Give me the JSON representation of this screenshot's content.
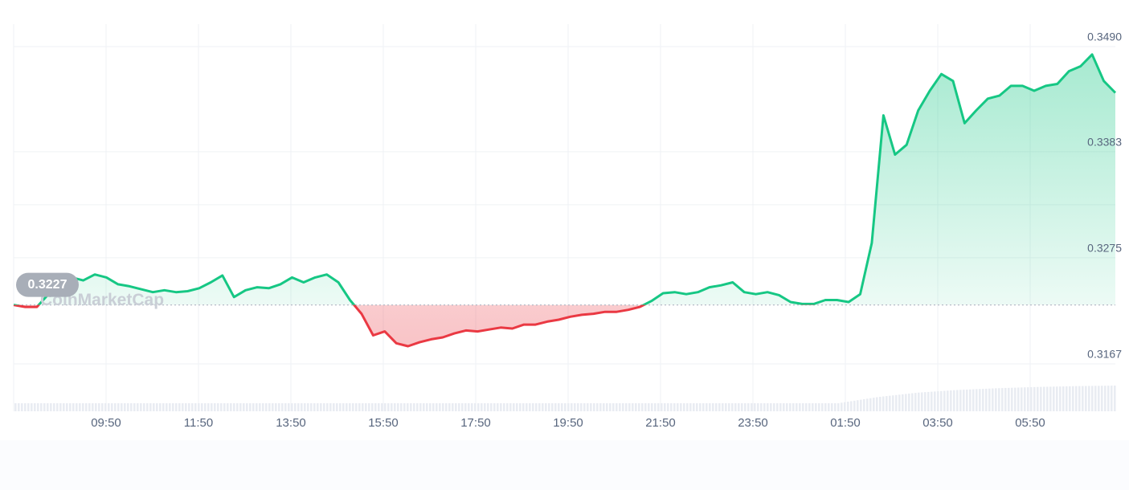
{
  "chart_data": {
    "type": "area",
    "title": "",
    "xlabel": "",
    "ylabel": "",
    "x_tick_labels": [
      "09:50",
      "11:50",
      "13:50",
      "15:50",
      "17:50",
      "19:50",
      "21:50",
      "23:50",
      "01:50",
      "03:50",
      "05:50"
    ],
    "y_tick_labels": [
      "0.3490",
      "0.3383",
      "0.3275",
      "0.3167"
    ],
    "ylim": [
      0.3138,
      0.351
    ],
    "baseline": 0.3227,
    "baseline_label": "0.3227",
    "watermark": "CoinMarketCap",
    "grid": true,
    "colors": {
      "up": "#16c784",
      "down": "#ea3943",
      "baseline": "#b5bcc8",
      "grid": "#eff2f5",
      "pill": "#a8aeb8"
    },
    "series": [
      {
        "x_hours": [
          0.0,
          0.25,
          0.5,
          0.75,
          1.0,
          1.25,
          1.5,
          1.75,
          2.0,
          2.25,
          2.5,
          2.75,
          3.0,
          3.25,
          3.5,
          3.75,
          4.0,
          4.25,
          4.5,
          4.75,
          5.0,
          5.25,
          5.5,
          5.75,
          6.0,
          6.25,
          6.5,
          6.75,
          7.0,
          7.25,
          7.5,
          7.75,
          8.0,
          8.25,
          8.5,
          8.75,
          9.0,
          9.25,
          9.5,
          9.75,
          10.0,
          10.25,
          10.5,
          10.75,
          11.0,
          11.25,
          11.5,
          11.75,
          12.0,
          12.25,
          12.5,
          12.75,
          13.0,
          13.25,
          13.5,
          13.75,
          14.0,
          14.25,
          14.5,
          14.75,
          15.0,
          15.25,
          15.5,
          15.75,
          16.0,
          16.25,
          16.5,
          16.75,
          17.0,
          17.25,
          17.5,
          17.75,
          18.0,
          18.25,
          18.5,
          18.75,
          19.0,
          19.25,
          19.5,
          19.75,
          20.0,
          20.25,
          20.5,
          20.75,
          21.0,
          21.25,
          21.5,
          21.75,
          22.0,
          22.25,
          22.5,
          22.75,
          23.0,
          23.25,
          23.5,
          23.75
        ],
        "values": [
          0.3227,
          0.3225,
          0.3225,
          0.3238,
          0.3242,
          0.3255,
          0.3252,
          0.3258,
          0.3255,
          0.3248,
          0.3246,
          0.3243,
          0.324,
          0.3242,
          0.324,
          0.3241,
          0.3244,
          0.325,
          0.3257,
          0.3235,
          0.3242,
          0.3245,
          0.3244,
          0.3248,
          0.3255,
          0.325,
          0.3255,
          0.3258,
          0.325,
          0.3232,
          0.3218,
          0.3196,
          0.32,
          0.3188,
          0.3185,
          0.3189,
          0.3192,
          0.3194,
          0.3198,
          0.3201,
          0.32,
          0.3202,
          0.3204,
          0.3203,
          0.3207,
          0.3207,
          0.321,
          0.3212,
          0.3215,
          0.3217,
          0.3218,
          0.322,
          0.322,
          0.3222,
          0.3225,
          0.3231,
          0.3239,
          0.324,
          0.3238,
          0.324,
          0.3245,
          0.3247,
          0.325,
          0.324,
          0.3238,
          0.324,
          0.3237,
          0.323,
          0.3228,
          0.3228,
          0.3232,
          0.3232,
          0.323,
          0.3238,
          0.329,
          0.342,
          0.338,
          0.339,
          0.3425,
          0.3445,
          0.3462,
          0.3455,
          0.3412,
          0.3425,
          0.3437,
          0.344,
          0.345,
          0.345,
          0.3445,
          0.345,
          0.3452,
          0.3465,
          0.347,
          0.3482,
          0.3455,
          0.3443
        ]
      }
    ],
    "volume_start_hour": 17.75,
    "volume_end_hour": 23.75,
    "volume_levels": [
      0.0,
      0.35,
      0.6,
      0.75,
      0.85,
      0.92,
      0.97,
      1.0
    ]
  }
}
